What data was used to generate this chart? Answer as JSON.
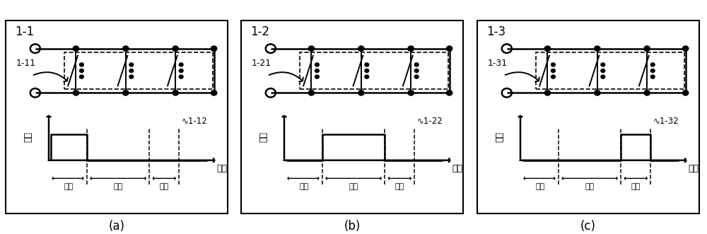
{
  "panel_labels": [
    "1-1",
    "1-2",
    "1-3"
  ],
  "panel_sublabels": [
    "1-11",
    "1-21",
    "1-31"
  ],
  "panel_wavelabels": [
    "1-12",
    "1-22",
    "1-32"
  ],
  "subcaptions": [
    "(a)",
    "(b)",
    "(c)"
  ],
  "ylabel": "电压",
  "xlabel": "时间",
  "phase_labels": [
    "开通",
    "维持",
    "关断"
  ],
  "bg_color": "#ffffff",
  "line_color": "#000000"
}
